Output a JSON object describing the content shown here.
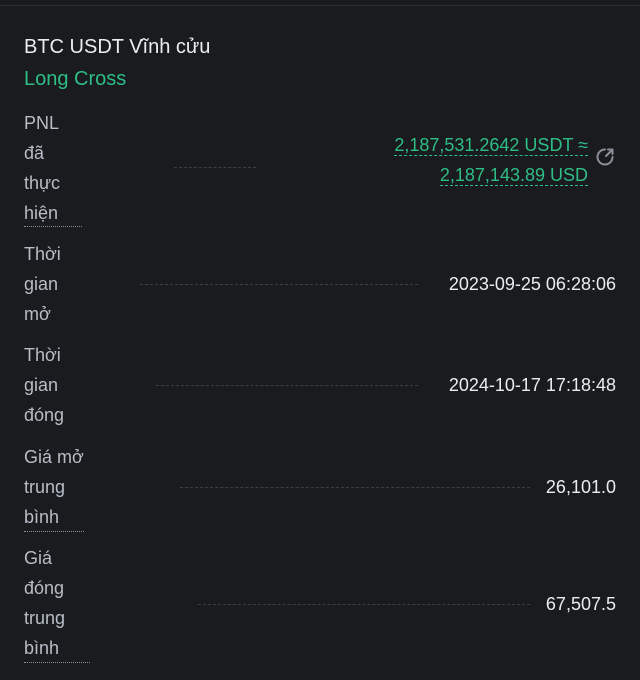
{
  "header": {
    "pair": "BTC USDT Vĩnh cửu",
    "position": "Long Cross"
  },
  "details": {
    "pnl": {
      "label": "PNL\nđã\nthực\nhiện",
      "value_usdt": "2,187,531.2642 USDT ≈",
      "value_usd": "2,187,143.89 USD"
    },
    "open_time": {
      "label": "Thời\ngian\nmở",
      "value": "2023-09-25 06:28:06"
    },
    "close_time": {
      "label": "Thời\ngian\nđóng",
      "value": "2024-10-17 17:18:48"
    },
    "avg_open_price": {
      "label": "Giá mở\ntrung\nbình",
      "value": "26,101.0"
    },
    "avg_close_price": {
      "label": "Giá\nđóng\ntrung\nbình",
      "value": "67,507.5"
    }
  },
  "colors": {
    "background": "#1a1b1f",
    "profit_green": "#2ebd85",
    "text_primary": "#eaecef",
    "text_secondary": "#b7bdc6"
  },
  "icons": {
    "share": "share-icon"
  }
}
